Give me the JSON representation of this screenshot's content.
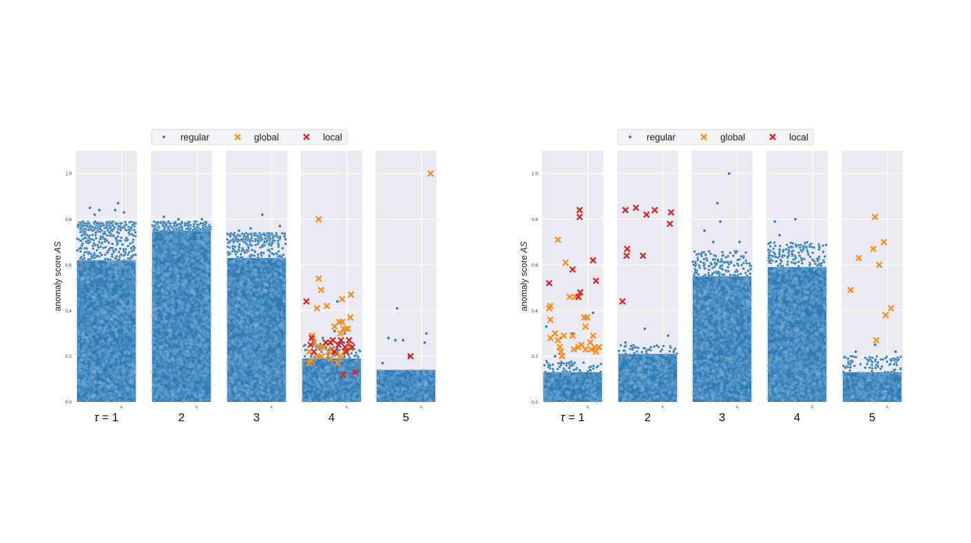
{
  "colors": {
    "regular": "#2f7bb6",
    "regular_edge": "#ffffff",
    "global": "#ff8c1a",
    "local": "#d62728",
    "panel_bg": "#eaeaf2",
    "grid": "#ffffff",
    "tick_text": "#333333",
    "label_text": "#222222"
  },
  "shared": {
    "ylabel": "anomaly score AS",
    "xlabel": "x_i",
    "yticks": [
      0.0,
      0.2,
      0.4,
      0.6,
      0.8,
      1.0
    ],
    "ylim": [
      0,
      1.1
    ],
    "legend": {
      "placement": "top-center",
      "entries": [
        {
          "name": "regular",
          "marker": "dot"
        },
        {
          "name": "global",
          "marker": "x"
        },
        {
          "name": "local",
          "marker": "x"
        }
      ]
    },
    "panel_titles": [
      "τ = 1",
      "2",
      "3",
      "4",
      "5"
    ]
  },
  "chart_data": [
    {
      "type": "scatter",
      "title": "",
      "grid": true,
      "panels": [
        {
          "tau": "τ = 1",
          "regular_bands": [
            {
              "ymin": 0.0,
              "ymax": 0.62,
              "density": 1.0
            },
            {
              "ymin": 0.62,
              "ymax": 0.75,
              "density": 0.35
            },
            {
              "ymin": 0.75,
              "ymax": 0.79,
              "density": 0.9
            }
          ],
          "regular_outliers": [
            [
              0.22,
              0.85
            ],
            [
              0.38,
              0.84
            ],
            [
              0.7,
              0.87
            ],
            [
              0.65,
              0.84
            ],
            [
              0.8,
              0.83
            ],
            [
              0.3,
              0.82
            ]
          ],
          "global": [],
          "local": []
        },
        {
          "tau": "2",
          "regular_bands": [
            {
              "ymin": 0.0,
              "ymax": 0.75,
              "density": 1.0
            },
            {
              "ymin": 0.75,
              "ymax": 0.79,
              "density": 0.8
            }
          ],
          "regular_outliers": [
            [
              0.2,
              0.81
            ],
            [
              0.45,
              0.8
            ],
            [
              0.85,
              0.8
            ]
          ],
          "global": [],
          "local": []
        },
        {
          "tau": "3",
          "regular_bands": [
            {
              "ymin": 0.0,
              "ymax": 0.63,
              "density": 1.0
            },
            {
              "ymin": 0.63,
              "ymax": 0.7,
              "density": 0.35
            },
            {
              "ymin": 0.7,
              "ymax": 0.74,
              "density": 0.8
            }
          ],
          "regular_outliers": [
            [
              0.6,
              0.82
            ],
            [
              0.4,
              0.76
            ],
            [
              0.2,
              0.75
            ],
            [
              0.9,
              0.77
            ]
          ],
          "global": [],
          "local": []
        },
        {
          "tau": "4",
          "regular_bands": [
            {
              "ymin": 0.0,
              "ymax": 0.19,
              "density": 1.0
            },
            {
              "ymin": 0.19,
              "ymax": 0.26,
              "density": 0.25
            }
          ],
          "regular_outliers": [
            [
              0.35,
              0.28
            ],
            [
              0.55,
              0.31
            ],
            [
              0.72,
              0.3
            ],
            [
              0.6,
              0.44
            ]
          ],
          "global": [
            [
              0.28,
              0.8
            ],
            [
              0.28,
              0.54
            ],
            [
              0.32,
              0.49
            ],
            [
              0.25,
              0.41
            ],
            [
              0.42,
              0.42
            ],
            [
              0.68,
              0.45
            ],
            [
              0.83,
              0.47
            ],
            [
              0.82,
              0.37
            ],
            [
              0.55,
              0.33
            ],
            [
              0.63,
              0.35
            ],
            [
              0.68,
              0.35
            ],
            [
              0.7,
              0.32
            ],
            [
              0.65,
              0.3
            ],
            [
              0.75,
              0.32
            ],
            [
              0.78,
              0.32
            ],
            [
              0.17,
              0.29
            ],
            [
              0.2,
              0.26
            ],
            [
              0.3,
              0.24
            ],
            [
              0.35,
              0.24
            ],
            [
              0.45,
              0.22
            ],
            [
              0.5,
              0.23
            ],
            [
              0.58,
              0.21
            ],
            [
              0.65,
              0.2
            ],
            [
              0.72,
              0.22
            ],
            [
              0.8,
              0.24
            ],
            [
              0.12,
              0.22
            ],
            [
              0.15,
              0.18
            ],
            [
              0.25,
              0.2
            ],
            [
              0.33,
              0.2
            ],
            [
              0.48,
              0.19
            ],
            [
              0.6,
              0.17
            ],
            [
              0.12,
              0.17
            ]
          ],
          "local": [
            [
              0.07,
              0.44
            ],
            [
              0.16,
              0.28
            ],
            [
              0.14,
              0.25
            ],
            [
              0.2,
              0.22
            ],
            [
              0.4,
              0.26
            ],
            [
              0.48,
              0.26
            ],
            [
              0.52,
              0.27
            ],
            [
              0.62,
              0.25
            ],
            [
              0.66,
              0.27
            ],
            [
              0.73,
              0.24
            ],
            [
              0.8,
              0.27
            ],
            [
              0.85,
              0.24
            ],
            [
              0.75,
              0.22
            ],
            [
              0.7,
              0.12
            ],
            [
              0.9,
              0.13
            ],
            [
              0.55,
              0.22
            ]
          ]
        },
        {
          "tau": "5",
          "regular_bands": [
            {
              "ymin": 0.0,
              "ymax": 0.14,
              "density": 1.0
            }
          ],
          "regular_outliers": [
            [
              0.35,
              0.41
            ],
            [
              0.2,
              0.28
            ],
            [
              0.32,
              0.27
            ],
            [
              0.45,
              0.27
            ],
            [
              0.85,
              0.3
            ],
            [
              0.82,
              0.26
            ],
            [
              0.1,
              0.17
            ],
            [
              0.55,
              0.2
            ]
          ],
          "global": [
            [
              0.92,
              1.0
            ]
          ],
          "local": [
            [
              0.58,
              0.2
            ]
          ]
        }
      ]
    },
    {
      "type": "scatter",
      "title": "",
      "grid": true,
      "panels": [
        {
          "tau": "τ = 1",
          "regular_bands": [
            {
              "ymin": 0.0,
              "ymax": 0.13,
              "density": 1.0
            },
            {
              "ymin": 0.13,
              "ymax": 0.18,
              "density": 0.25
            }
          ],
          "regular_outliers": [
            [
              0.05,
              0.33
            ],
            [
              0.3,
              0.28
            ],
            [
              0.5,
              0.3
            ],
            [
              0.85,
              0.39
            ],
            [
              0.2,
              0.2
            ]
          ],
          "global": [
            [
              0.25,
              0.71
            ],
            [
              0.38,
              0.61
            ],
            [
              0.12,
              0.42
            ],
            [
              0.1,
              0.41
            ],
            [
              0.12,
              0.36
            ],
            [
              0.55,
              0.46
            ],
            [
              0.45,
              0.46
            ],
            [
              0.7,
              0.37
            ],
            [
              0.75,
              0.37
            ],
            [
              0.72,
              0.33
            ],
            [
              0.12,
              0.28
            ],
            [
              0.2,
              0.3
            ],
            [
              0.25,
              0.27
            ],
            [
              0.35,
              0.29
            ],
            [
              0.28,
              0.24
            ],
            [
              0.3,
              0.22
            ],
            [
              0.32,
              0.2
            ],
            [
              0.5,
              0.29
            ],
            [
              0.52,
              0.23
            ],
            [
              0.6,
              0.24
            ],
            [
              0.65,
              0.25
            ],
            [
              0.72,
              0.23
            ],
            [
              0.8,
              0.26
            ],
            [
              0.82,
              0.23
            ],
            [
              0.88,
              0.24
            ],
            [
              0.9,
              0.22
            ],
            [
              0.85,
              0.29
            ],
            [
              0.95,
              0.24
            ]
          ],
          "local": [
            [
              0.1,
              0.52
            ],
            [
              0.62,
              0.84
            ],
            [
              0.62,
              0.81
            ],
            [
              0.5,
              0.58
            ],
            [
              0.85,
              0.62
            ],
            [
              0.63,
              0.48
            ],
            [
              0.6,
              0.46
            ],
            [
              0.9,
              0.53
            ]
          ]
        },
        {
          "tau": "2",
          "regular_bands": [
            {
              "ymin": 0.0,
              "ymax": 0.21,
              "density": 1.0
            },
            {
              "ymin": 0.21,
              "ymax": 0.25,
              "density": 0.25
            }
          ],
          "regular_outliers": [
            [
              0.45,
              0.32
            ],
            [
              0.85,
              0.29
            ],
            [
              0.12,
              0.26
            ]
          ],
          "global": [],
          "local": [
            [
              0.12,
              0.84
            ],
            [
              0.3,
              0.85
            ],
            [
              0.48,
              0.82
            ],
            [
              0.62,
              0.84
            ],
            [
              0.9,
              0.83
            ],
            [
              0.88,
              0.78
            ],
            [
              0.15,
              0.67
            ],
            [
              0.14,
              0.64
            ],
            [
              0.42,
              0.64
            ],
            [
              0.07,
              0.44
            ]
          ]
        },
        {
          "tau": "3",
          "regular_bands": [
            {
              "ymin": 0.0,
              "ymax": 0.55,
              "density": 1.0
            },
            {
              "ymin": 0.55,
              "ymax": 0.66,
              "density": 0.3
            }
          ],
          "regular_outliers": [
            [
              0.62,
              1.0
            ],
            [
              0.42,
              0.87
            ],
            [
              0.47,
              0.79
            ],
            [
              0.2,
              0.75
            ],
            [
              0.35,
              0.7
            ],
            [
              0.8,
              0.7
            ]
          ],
          "global": [],
          "local": []
        },
        {
          "tau": "4",
          "regular_bands": [
            {
              "ymin": 0.0,
              "ymax": 0.59,
              "density": 1.0
            },
            {
              "ymin": 0.59,
              "ymax": 0.7,
              "density": 0.3
            }
          ],
          "regular_outliers": [
            [
              0.47,
              0.8
            ],
            [
              0.12,
              0.79
            ],
            [
              0.2,
              0.73
            ]
          ],
          "global": [],
          "local": []
        },
        {
          "tau": "5",
          "regular_bands": [
            {
              "ymin": 0.0,
              "ymax": 0.13,
              "density": 1.0
            },
            {
              "ymin": 0.13,
              "ymax": 0.2,
              "density": 0.25
            }
          ],
          "regular_outliers": [
            [
              0.55,
              0.25
            ],
            [
              0.22,
              0.22
            ],
            [
              0.9,
              0.22
            ]
          ],
          "global": [
            [
              0.55,
              0.81
            ],
            [
              0.7,
              0.7
            ],
            [
              0.52,
              0.67
            ],
            [
              0.62,
              0.6
            ],
            [
              0.27,
              0.63
            ],
            [
              0.13,
              0.49
            ],
            [
              0.82,
              0.41
            ],
            [
              0.73,
              0.38
            ],
            [
              0.57,
              0.27
            ]
          ],
          "local": []
        }
      ]
    }
  ]
}
